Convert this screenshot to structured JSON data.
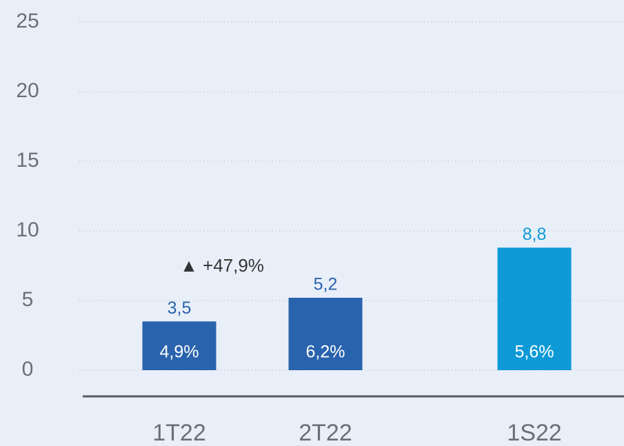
{
  "chart_data": {
    "type": "bar",
    "categories": [
      "1T22",
      "2T22",
      "1S22"
    ],
    "values": [
      3.5,
      5.2,
      8.8
    ],
    "value_labels": [
      "3,5",
      "5,2",
      "8,8"
    ],
    "inner_labels": [
      "4,9%",
      "6,2%",
      "5,6%"
    ],
    "colors": [
      "#2a63ad",
      "#2a63ad",
      "#0e9ad7"
    ],
    "annotation": "▲ +47,9%",
    "ylim": [
      0,
      25
    ],
    "yticks": [
      0,
      5,
      10,
      15,
      20,
      25
    ],
    "grid": true
  }
}
